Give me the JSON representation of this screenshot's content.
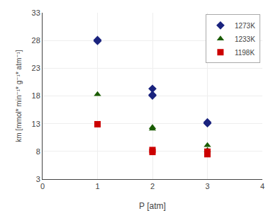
{
  "chart_data": {
    "type": "scatter",
    "xlabel": "P [atm]",
    "ylabel": "km [mmol* min⁻¹* g⁻¹* atm⁻¹]",
    "series": [
      {
        "name": "1273K",
        "color": "#1a237e",
        "marker": "diamond",
        "x": [
          1,
          1,
          2,
          2,
          2,
          3,
          3
        ],
        "values": [
          28.1,
          27.9,
          19.3,
          18.2,
          18.05,
          13.25,
          13.05
        ]
      },
      {
        "name": "1233K",
        "color": "#1a5c00",
        "marker": "triangle-up",
        "x": [
          1,
          2,
          2,
          3,
          3
        ],
        "values": [
          18.3,
          12.35,
          12.05,
          9.1,
          8.2
        ]
      },
      {
        "name": "1198K",
        "color": "#cc0000",
        "marker": "square",
        "x": [
          1,
          2,
          2,
          3,
          3
        ],
        "values": [
          12.9,
          8.25,
          7.9,
          7.95,
          7.5
        ]
      }
    ],
    "xlim": [
      0,
      4
    ],
    "xticks": [
      0,
      1,
      2,
      3,
      4
    ],
    "ylim": [
      3,
      33
    ],
    "yticks": [
      3,
      8,
      13,
      18,
      23,
      28,
      33
    ],
    "grid": true,
    "legend": "upper right"
  }
}
